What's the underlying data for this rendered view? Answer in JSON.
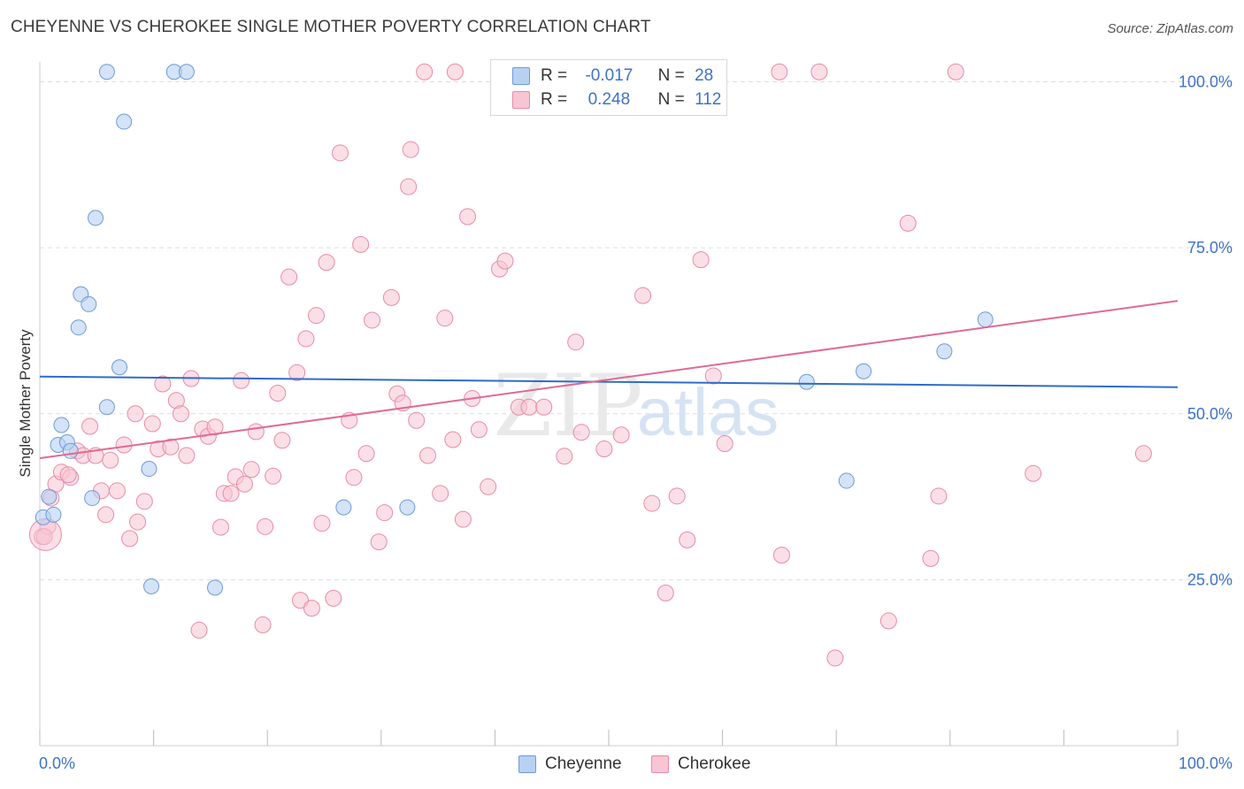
{
  "header": {
    "title": "CHEYENNE VS CHEROKEE SINGLE MOTHER POVERTY CORRELATION CHART",
    "source": "Source: ZipAtlas.com"
  },
  "watermark": {
    "zip": "ZIP",
    "atlas": "atlas"
  },
  "legend": {
    "rows": [
      {
        "r_label": "R =",
        "r_value": "-0.017",
        "n_label": "N =",
        "n_value": "28"
      },
      {
        "r_label": "R =",
        "r_value": "0.248",
        "n_label": "N =",
        "n_value": "112"
      }
    ]
  },
  "colors": {
    "cheyenne_fill": "#b8d0f2",
    "cheyenne_stroke": "#6e9ad8",
    "cheyenne_line": "#2e6ccb",
    "cherokee_fill": "#f8c5d4",
    "cherokee_stroke": "#e88aa8",
    "cherokee_line": "#e06a93",
    "tick_label": "#3d72c8",
    "grid": "#dddddd"
  },
  "chart_data": {
    "type": "scatter",
    "title": "CHEYENNE VS CHEROKEE SINGLE MOTHER POVERTY CORRELATION CHART",
    "xlabel": "",
    "ylabel": "Single Mother Poverty",
    "xlim": [
      0,
      100
    ],
    "ylim": [
      0,
      103
    ],
    "x_tick_labels": [
      "0.0%",
      "100.0%"
    ],
    "y_ticks": [
      25,
      50,
      75,
      100
    ],
    "y_tick_labels": [
      "25.0%",
      "50.0%",
      "75.0%",
      "100.0%"
    ],
    "grid": true,
    "legend_position": "bottom",
    "series": [
      {
        "name": "Cheyenne",
        "r": -0.017,
        "n": 28,
        "trend": {
          "x": [
            0,
            100
          ],
          "y": [
            55.6,
            54.0
          ]
        },
        "points": [
          [
            0.3,
            34.4
          ],
          [
            0.8,
            37.5
          ],
          [
            1.2,
            34.8
          ],
          [
            1.9,
            48.3
          ],
          [
            1.6,
            45.3
          ],
          [
            2.4,
            45.7
          ],
          [
            2.7,
            44.4
          ],
          [
            3.4,
            63.0
          ],
          [
            3.6,
            68.0
          ],
          [
            4.3,
            66.5
          ],
          [
            4.6,
            37.3
          ],
          [
            4.9,
            79.5
          ],
          [
            5.9,
            101.5
          ],
          [
            5.9,
            51.0
          ],
          [
            7.0,
            57.0
          ],
          [
            7.4,
            94.0
          ],
          [
            9.6,
            41.7
          ],
          [
            9.8,
            24.0
          ],
          [
            11.8,
            101.5
          ],
          [
            12.9,
            101.5
          ],
          [
            15.4,
            23.8
          ],
          [
            26.7,
            35.9
          ],
          [
            32.3,
            35.9
          ],
          [
            67.4,
            54.8
          ],
          [
            70.9,
            39.9
          ],
          [
            72.4,
            56.4
          ],
          [
            79.5,
            59.4
          ],
          [
            83.1,
            64.2
          ]
        ]
      },
      {
        "name": "Cherokee",
        "r": 0.248,
        "n": 112,
        "trend": {
          "x": [
            0,
            100
          ],
          "y": [
            43.3,
            67.0
          ]
        },
        "points": [
          [
            0.2,
            31.5
          ],
          [
            0.7,
            33.0
          ],
          [
            1.0,
            37.3
          ],
          [
            1.4,
            39.4
          ],
          [
            1.9,
            41.2
          ],
          [
            2.7,
            40.4
          ],
          [
            3.3,
            44.4
          ],
          [
            3.8,
            43.7
          ],
          [
            4.4,
            48.1
          ],
          [
            4.9,
            43.7
          ],
          [
            5.4,
            38.4
          ],
          [
            5.8,
            34.8
          ],
          [
            6.2,
            43.0
          ],
          [
            6.8,
            38.4
          ],
          [
            7.4,
            45.3
          ],
          [
            7.9,
            31.2
          ],
          [
            8.4,
            50.0
          ],
          [
            8.6,
            33.7
          ],
          [
            9.2,
            36.8
          ],
          [
            9.9,
            48.5
          ],
          [
            10.4,
            44.7
          ],
          [
            10.8,
            54.5
          ],
          [
            11.5,
            45.0
          ],
          [
            12.0,
            52.0
          ],
          [
            12.4,
            50.0
          ],
          [
            12.9,
            43.7
          ],
          [
            13.3,
            55.3
          ],
          [
            14.0,
            17.4
          ],
          [
            14.3,
            47.7
          ],
          [
            14.8,
            46.6
          ],
          [
            15.4,
            48.0
          ],
          [
            15.9,
            32.9
          ],
          [
            16.2,
            38.0
          ],
          [
            16.8,
            38.0
          ],
          [
            17.2,
            40.5
          ],
          [
            17.7,
            55.0
          ],
          [
            18.0,
            39.4
          ],
          [
            18.6,
            41.6
          ],
          [
            19.0,
            47.3
          ],
          [
            19.6,
            18.2
          ],
          [
            19.8,
            33.0
          ],
          [
            20.5,
            40.6
          ],
          [
            20.9,
            53.1
          ],
          [
            21.3,
            46.0
          ],
          [
            21.9,
            70.6
          ],
          [
            22.6,
            56.2
          ],
          [
            22.9,
            21.9
          ],
          [
            23.4,
            61.3
          ],
          [
            23.9,
            20.7
          ],
          [
            24.3,
            64.8
          ],
          [
            24.8,
            33.5
          ],
          [
            25.2,
            72.8
          ],
          [
            25.8,
            22.2
          ],
          [
            26.4,
            89.3
          ],
          [
            27.2,
            49.0
          ],
          [
            27.6,
            40.4
          ],
          [
            28.2,
            75.5
          ],
          [
            28.7,
            44.0
          ],
          [
            29.2,
            64.1
          ],
          [
            29.8,
            30.7
          ],
          [
            30.3,
            35.1
          ],
          [
            30.9,
            67.5
          ],
          [
            31.4,
            53.0
          ],
          [
            31.9,
            51.6
          ],
          [
            32.4,
            84.2
          ],
          [
            32.6,
            89.8
          ],
          [
            33.1,
            49.0
          ],
          [
            34.1,
            43.7
          ],
          [
            35.2,
            38.0
          ],
          [
            35.6,
            64.4
          ],
          [
            36.3,
            46.1
          ],
          [
            37.2,
            34.1
          ],
          [
            37.6,
            79.7
          ],
          [
            38.0,
            52.3
          ],
          [
            38.6,
            47.6
          ],
          [
            39.4,
            39.0
          ],
          [
            40.4,
            71.8
          ],
          [
            40.9,
            73.0
          ],
          [
            42.1,
            51.0
          ],
          [
            43.0,
            51.0
          ],
          [
            44.3,
            51.0
          ],
          [
            46.1,
            43.6
          ],
          [
            47.1,
            60.8
          ],
          [
            47.6,
            47.2
          ],
          [
            49.6,
            44.7
          ],
          [
            51.1,
            46.8
          ],
          [
            53.0,
            67.8
          ],
          [
            53.8,
            36.5
          ],
          [
            55.0,
            23.0
          ],
          [
            56.0,
            37.6
          ],
          [
            56.9,
            31.0
          ],
          [
            58.1,
            73.2
          ],
          [
            59.2,
            55.7
          ],
          [
            60.2,
            45.5
          ],
          [
            65.2,
            28.7
          ],
          [
            69.9,
            13.2
          ],
          [
            74.6,
            18.8
          ],
          [
            76.3,
            78.7
          ],
          [
            78.3,
            28.2
          ],
          [
            79.0,
            37.6
          ],
          [
            87.3,
            41.0
          ],
          [
            97.0,
            44.0
          ],
          [
            33.8,
            101.5
          ],
          [
            36.5,
            101.5
          ],
          [
            45.2,
            101.5
          ],
          [
            48.2,
            101.5
          ],
          [
            65.0,
            101.5
          ],
          [
            68.5,
            101.5
          ],
          [
            80.5,
            101.5
          ],
          [
            2.5,
            40.8
          ],
          [
            0.4,
            31.5
          ]
        ]
      }
    ]
  },
  "bottom_legend": {
    "items": [
      "Cheyenne",
      "Cherokee"
    ]
  }
}
